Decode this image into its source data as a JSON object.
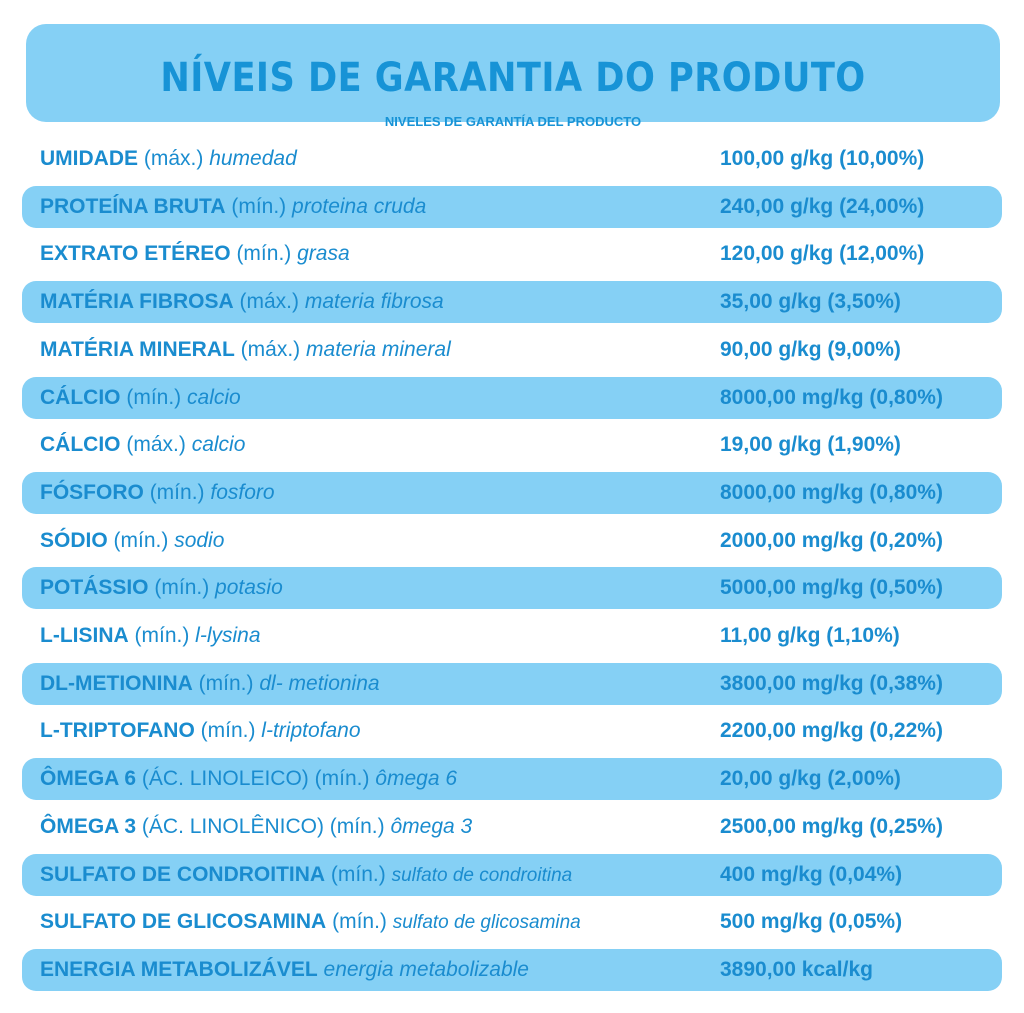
{
  "header": {
    "title": "NÍVEIS DE GARANTIA DO PRODUTO",
    "subtitle": "NIVELES DE GARANTÍA DEL PRODUCTO"
  },
  "rows": [
    {
      "name": "UMIDADE",
      "qual": "(máx.)",
      "es": "humedad",
      "value": "100,00 g/kg (10,00%)"
    },
    {
      "name": "PROTEÍNA BRUTA",
      "qual": "(mín.)",
      "es": "proteina cruda",
      "value": "240,00 g/kg (24,00%)"
    },
    {
      "name": "EXTRATO ETÉREO",
      "qual": "(mín.)",
      "es": "grasa",
      "value": "120,00 g/kg (12,00%)"
    },
    {
      "name": "MATÉRIA FIBROSA",
      "qual": "(máx.)",
      "es": "materia fibrosa",
      "value": "35,00 g/kg (3,50%)"
    },
    {
      "name": "MATÉRIA MINERAL",
      "qual": "(máx.)",
      "es": "materia mineral",
      "value": "90,00 g/kg (9,00%)"
    },
    {
      "name": "CÁLCIO",
      "qual": "(mín.)",
      "es": "calcio",
      "value": "8000,00 mg/kg (0,80%)"
    },
    {
      "name": "CÁLCIO",
      "qual": "(máx.)",
      "es": "calcio",
      "value": "19,00 g/kg (1,90%)"
    },
    {
      "name": "FÓSFORO",
      "qual": "(mín.)",
      "es": "fosforo",
      "value": "8000,00 mg/kg (0,80%)"
    },
    {
      "name": "SÓDIO",
      "qual": "(mín.)",
      "es": "sodio",
      "value": "2000,00 mg/kg (0,20%)"
    },
    {
      "name": "POTÁSSIO",
      "qual": "(mín.)",
      "es": "potasio",
      "value": "5000,00 mg/kg (0,50%)"
    },
    {
      "name": "L-LISINA",
      "qual": "(mín.)",
      "es": "l-lysina",
      "value": "11,00 g/kg (1,10%)"
    },
    {
      "name": "DL-METIONINA",
      "qual": "(mín.)",
      "es": "dl- metionina",
      "value": "3800,00 mg/kg (0,38%)"
    },
    {
      "name": "L-TRIPTOFANO",
      "qual": "(mín.)",
      "es": "l-triptofano",
      "value": "2200,00 mg/kg (0,22%)"
    },
    {
      "name": "ÔMEGA 6",
      "qual": "(ÁC. LINOLEICO) (mín.)",
      "es": "ômega 6",
      "value": "20,00 g/kg (2,00%)"
    },
    {
      "name": "ÔMEGA 3",
      "qual": "(ÁC. LINOLÊNICO) (mín.)",
      "es": "ômega 3",
      "value": "2500,00 mg/kg (0,25%)"
    },
    {
      "name": "SULFATO DE CONDROITINA",
      "qual": "(mín.)",
      "es": "sulfato de condroitina",
      "value": "400 mg/kg (0,04%)"
    },
    {
      "name": "SULFATO DE GLICOSAMINA",
      "qual": "(mín.)",
      "es": "sulfato de glicosamina",
      "value": "500 mg/kg (0,05%)"
    },
    {
      "name": "ENERGIA METABOLIZÁVEL",
      "qual": "",
      "es": "energia metabolizable",
      "value": "3890,00 kcal/kg"
    }
  ],
  "colors": {
    "text": "#1a8ccf",
    "title": "#1793d6",
    "band": "#85d0f5"
  }
}
